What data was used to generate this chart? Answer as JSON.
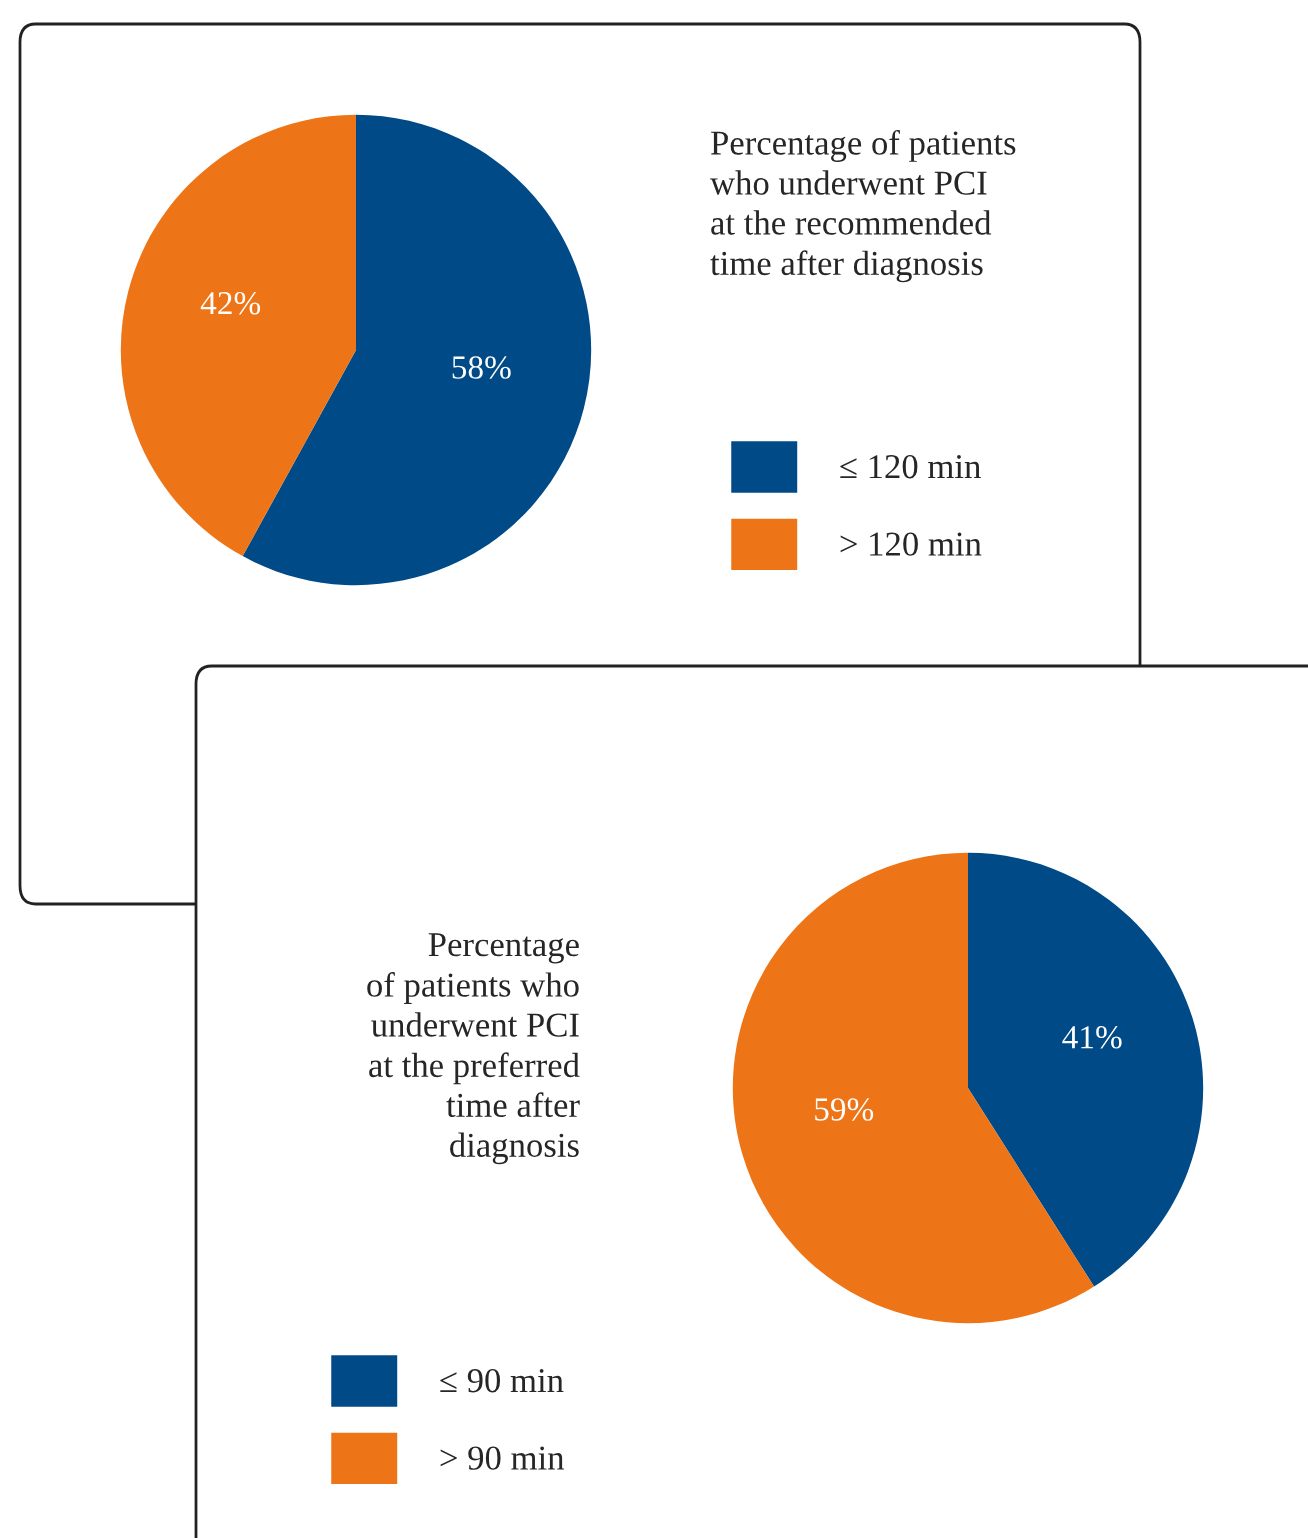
{
  "chart_data": [
    {
      "type": "pie",
      "title": "Percentage of patients\nwho underwent PCI\nat the recommended\ntime after diagnosis",
      "categories": [
        "≤ 120 min",
        "> 120 min"
      ],
      "values": [
        58,
        42
      ],
      "value_labels": [
        "58%",
        "42%"
      ],
      "colors": [
        "#004a87",
        "#ee7517"
      ],
      "legend": "right"
    },
    {
      "type": "pie",
      "title": "Percentage\nof patients who\nunderwent PCI\nat the preferred\ntime after\ndiagnosis",
      "categories": [
        "≤ 90 min",
        "> 90 min"
      ],
      "values": [
        41,
        59
      ],
      "value_labels": [
        "41%",
        "59%"
      ],
      "colors": [
        "#004a87",
        "#ee7517"
      ],
      "legend": "bottom left"
    }
  ]
}
